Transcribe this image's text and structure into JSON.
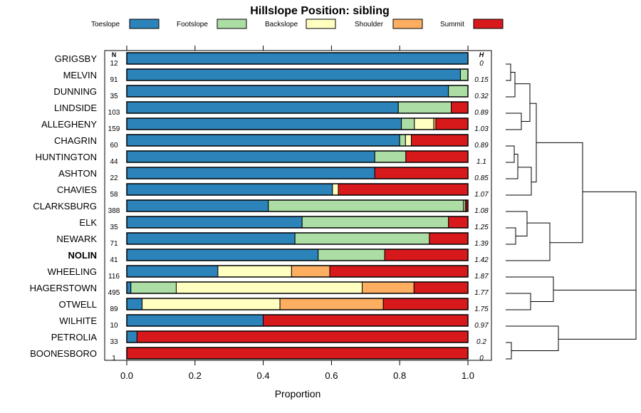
{
  "chart_data": {
    "type": "bar",
    "orientation": "horizontal",
    "stacked": true,
    "title": "Hillslope Position: sibling",
    "xlabel": "Proportion",
    "xlim": [
      0,
      1
    ],
    "xticks": [
      "0.0",
      "0.2",
      "0.4",
      "0.6",
      "0.8",
      "1.0"
    ],
    "n_header": "N",
    "h_header": "H",
    "highlight": "NOLIN",
    "legend": [
      {
        "name": "Toeslope",
        "color": "#2b83ba"
      },
      {
        "name": "Footslope",
        "color": "#abdda4"
      },
      {
        "name": "Backslope",
        "color": "#ffffbf"
      },
      {
        "name": "Shoulder",
        "color": "#fdae61"
      },
      {
        "name": "Summit",
        "color": "#d7191c"
      }
    ],
    "rows": [
      {
        "label": "GRIGSBY",
        "n": "12",
        "h": "0",
        "values": [
          1.0,
          0,
          0,
          0,
          0
        ]
      },
      {
        "label": "MELVIN",
        "n": "91",
        "h": "0.15",
        "values": [
          0.978,
          0.022,
          0,
          0,
          0
        ]
      },
      {
        "label": "DUNNING",
        "n": "35",
        "h": "0.32",
        "values": [
          0.943,
          0.057,
          0,
          0,
          0
        ]
      },
      {
        "label": "LINDSIDE",
        "n": "103",
        "h": "0.89",
        "values": [
          0.796,
          0.155,
          0,
          0,
          0.049
        ]
      },
      {
        "label": "ALLEGHENY",
        "n": "159",
        "h": "1.03",
        "values": [
          0.805,
          0.038,
          0.057,
          0.006,
          0.094
        ]
      },
      {
        "label": "CHAGRIN",
        "n": "60",
        "h": "0.89",
        "values": [
          0.8,
          0.017,
          0.017,
          0,
          0.166
        ]
      },
      {
        "label": "HUNTINGTON",
        "n": "44",
        "h": "1.1",
        "values": [
          0.727,
          0.091,
          0,
          0,
          0.182
        ]
      },
      {
        "label": "ASHTON",
        "n": "22",
        "h": "0.85",
        "values": [
          0.727,
          0,
          0,
          0,
          0.273
        ]
      },
      {
        "label": "CHAVIES",
        "n": "58",
        "h": "1.07",
        "values": [
          0.603,
          0,
          0.017,
          0,
          0.38
        ]
      },
      {
        "label": "CLARKSBURG",
        "n": "388",
        "h": "1.08",
        "values": [
          0.415,
          0.572,
          0.005,
          0.003,
          0.005
        ]
      },
      {
        "label": "ELK",
        "n": "35",
        "h": "1.25",
        "values": [
          0.514,
          0.429,
          0,
          0,
          0.057
        ]
      },
      {
        "label": "NEWARK",
        "n": "71",
        "h": "1.39",
        "values": [
          0.493,
          0.394,
          0,
          0,
          0.113
        ]
      },
      {
        "label": "NOLIN",
        "n": "41",
        "h": "1.42",
        "values": [
          0.561,
          0.195,
          0,
          0,
          0.244
        ]
      },
      {
        "label": "WHEELING",
        "n": "116",
        "h": "1.87",
        "values": [
          0.267,
          0,
          0.216,
          0.112,
          0.405
        ]
      },
      {
        "label": "HAGERSTOWN",
        "n": "495",
        "h": "1.77",
        "values": [
          0.012,
          0.133,
          0.545,
          0.152,
          0.158
        ]
      },
      {
        "label": "OTWELL",
        "n": "89",
        "h": "1.75",
        "values": [
          0.045,
          0,
          0.404,
          0.303,
          0.248
        ]
      },
      {
        "label": "WILHITE",
        "n": "10",
        "h": "0.97",
        "values": [
          0.4,
          0,
          0,
          0,
          0.6
        ]
      },
      {
        "label": "PETROLIA",
        "n": "33",
        "h": "0.2",
        "values": [
          0.03,
          0,
          0,
          0,
          0.97
        ]
      },
      {
        "label": "BOONESBORO",
        "n": "1",
        "h": "0",
        "values": [
          0,
          0,
          0,
          0,
          1.0
        ]
      }
    ]
  }
}
